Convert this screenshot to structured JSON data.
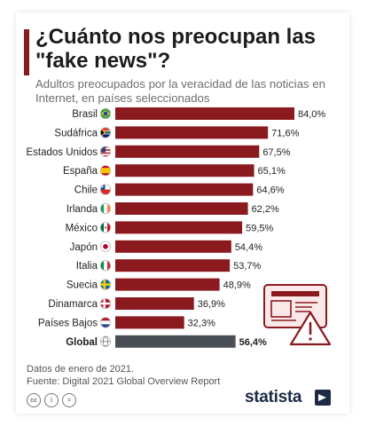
{
  "header": {
    "title": "¿Cuánto nos preocupan las \"fake news\"?",
    "subtitle": "Adultos preocupados por la veracidad de las noticias en Internet, en países seleccionados"
  },
  "colors": {
    "bar": "#8b1a1f",
    "global_bar": "#4a4f55",
    "accent": "#8b1a1f"
  },
  "chart_data": {
    "type": "bar",
    "orientation": "horizontal",
    "categories": [
      "Brasil",
      "Sudáfrica",
      "Estados Unidos",
      "España",
      "Chile",
      "Irlanda",
      "México",
      "Japón",
      "Italia",
      "Suecia",
      "Dinamarca",
      "Países Bajos",
      "Global"
    ],
    "values": [
      84.0,
      71.6,
      67.5,
      65.1,
      64.6,
      62.2,
      59.5,
      54.4,
      53.7,
      48.9,
      36.9,
      32.3,
      56.4
    ],
    "value_labels": [
      "84,0%",
      "71,6%",
      "67,5%",
      "65,1%",
      "64,6%",
      "62,2%",
      "59,5%",
      "54,4%",
      "53,7%",
      "48,9%",
      "36,9%",
      "32,3%",
      "56,4%"
    ],
    "flags": [
      "brazil-flag-icon",
      "south-africa-flag-icon",
      "usa-flag-icon",
      "spain-flag-icon",
      "chile-flag-icon",
      "ireland-flag-icon",
      "mexico-flag-icon",
      "japan-flag-icon",
      "italy-flag-icon",
      "sweden-flag-icon",
      "denmark-flag-icon",
      "netherlands-flag-icon",
      "globe-icon"
    ],
    "highlight_last": true,
    "xlim": [
      0,
      84.0
    ]
  },
  "footer": {
    "note": "Datos de enero de 2021.",
    "source": "Fuente: Digital 2021 Global Overview Report"
  },
  "brand": {
    "name": "statista"
  }
}
